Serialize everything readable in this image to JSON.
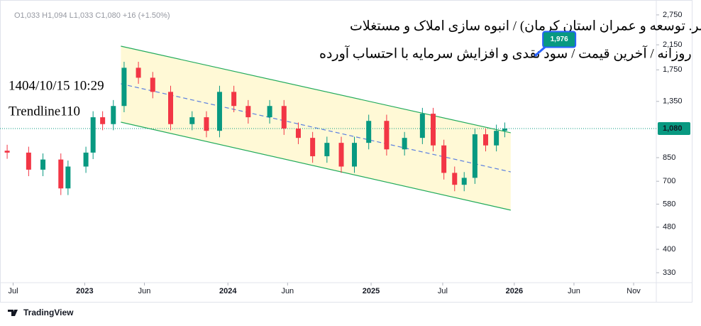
{
  "chart_data": {
    "type": "candlestick",
    "header": "O1,033 H1,094 L1,033 C1,080 +16 (+1.50%)",
    "title": "کرمان (سر. توسعه و عمران استان کرمان) / انبوه سازی املاک و مستغلات",
    "subtitle": "روزانه / آخرین قیمت / سود نقدی و افزایش سرمایه با احتساب آورده",
    "timestamp": "1404/10/15 10:29",
    "annotation": "Trendline110",
    "brand": "TradingView",
    "log": true,
    "up_color": "#089981",
    "down_color": "#f23645",
    "x": [
      -6.5,
      -4.7,
      -3.5,
      -2.0,
      -1.4,
      0.1,
      0.7,
      1.5,
      2.4,
      3.3,
      4.5,
      5.7,
      7.2,
      9.0,
      10.2,
      11.3,
      12.5,
      13.7,
      15.5,
      16.7,
      17.9,
      19.1,
      20.3,
      21.5,
      22.6,
      23.8,
      25.3,
      26.8,
      28.3,
      29.2,
      30.1,
      31.0,
      31.8,
      32.7,
      33.6,
      34.5,
      35.2
    ],
    "open": [
      900,
      886,
      770,
      837,
      660,
      790,
      886,
      1185,
      1120,
      1300,
      1780,
      1640,
      1460,
      1120,
      1185,
      1060,
      1460,
      1300,
      1185,
      1300,
      1080,
      1000,
      860,
      960,
      790,
      960,
      1150,
      910,
      1000,
      1220,
      940,
      750,
      680,
      720,
      1030,
      940,
      1060
    ],
    "high": [
      945,
      930,
      880,
      880,
      830,
      930,
      1245,
      1245,
      1365,
      1870,
      1870,
      1720,
      1535,
      1245,
      1245,
      1535,
      1535,
      1365,
      1365,
      1365,
      1135,
      1050,
      1010,
      1010,
      1010,
      1210,
      1210,
      1050,
      1280,
      1280,
      985,
      790,
      755,
      1080,
      1080,
      1115,
      1135
    ],
    "low": [
      842,
      730,
      730,
      625,
      625,
      750,
      840,
      1065,
      1065,
      1235,
      1560,
      1385,
      1065,
      1065,
      1005,
      1005,
      1235,
      1125,
      1125,
      1025,
      950,
      815,
      815,
      750,
      750,
      910,
      865,
      865,
      950,
      895,
      710,
      645,
      645,
      685,
      895,
      895,
      1005
    ],
    "close": [
      886,
      770,
      837,
      660,
      790,
      886,
      1185,
      1120,
      1300,
      1780,
      1640,
      1460,
      1120,
      1185,
      1060,
      1460,
      1300,
      1185,
      1300,
      1080,
      1000,
      860,
      960,
      790,
      960,
      1150,
      910,
      1000,
      1220,
      940,
      750,
      680,
      720,
      1030,
      940,
      1060,
      1080
    ],
    "channel": {
      "color": "#22ab5c",
      "mid_color": "#5b7fe0",
      "fill": "#fff9d6",
      "upper": {
        "x": [
          3.03,
          35.7
        ],
        "values": [
          2126,
          1043
        ]
      },
      "middle": {
        "x": [
          3.03,
          35.7
        ],
        "values": [
          1560,
          756
        ]
      },
      "lower": {
        "x": [
          3.03,
          35.7
        ],
        "values": [
          1138,
          552
        ]
      }
    },
    "last_price": {
      "value": 1080,
      "label": "1,080"
    },
    "callout": {
      "x": 37.8,
      "value": 1976,
      "label": "1,976"
    },
    "xlim": [
      -7.1,
      47.9
    ],
    "xticks": [
      {
        "value": -6,
        "label": "Jul"
      },
      {
        "value": 0,
        "label": "2023"
      },
      {
        "value": 5,
        "label": "Jun"
      },
      {
        "value": 12,
        "label": "2024"
      },
      {
        "value": 17,
        "label": "Jun"
      },
      {
        "value": 24,
        "label": "2025"
      },
      {
        "value": 30,
        "label": "Jul"
      },
      {
        "value": 36,
        "label": "2026"
      },
      {
        "value": 41,
        "label": "Jun"
      },
      {
        "value": 46,
        "label": "Nov"
      }
    ],
    "ylim": [
      304,
      3108
    ],
    "yticks": [
      330,
      400,
      480,
      580,
      700,
      850,
      {
        "value": 1350,
        "label": "1,350"
      },
      {
        "value": 1750,
        "label": "1,750"
      },
      {
        "value": 2150,
        "label": "2,150"
      },
      {
        "value": 2750,
        "label": "2,750"
      }
    ]
  }
}
